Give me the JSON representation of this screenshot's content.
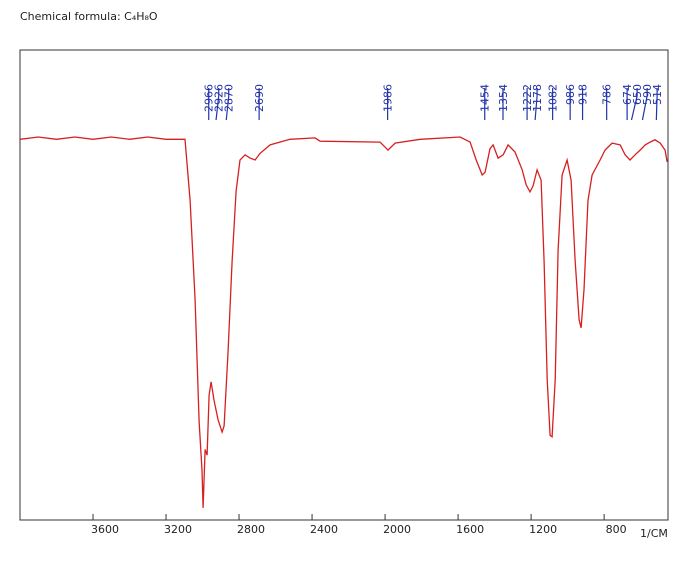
{
  "chart_data": {
    "type": "line",
    "title": "Chemical formula: C₄H₈O",
    "x_label": "1/CM",
    "xlim": [
      4000,
      450
    ],
    "ylim": [
      0,
      100
    ],
    "xticks": [
      3600,
      3200,
      2800,
      2400,
      2000,
      1600,
      1200,
      800
    ],
    "peaks": [
      2966,
      2926,
      2870,
      2690,
      1986,
      1454,
      1354,
      1222,
      1178,
      1082,
      986,
      918,
      786,
      674,
      650,
      590,
      514
    ],
    "peak_color": "#2233aa",
    "series": [
      {
        "name": "C4H8O",
        "color": "#d62020",
        "x": [
          4000,
          3900,
          3800,
          3700,
          3600,
          3500,
          3400,
          3300,
          3200,
          3096,
          3068,
          3041,
          3019,
          3003,
          2997,
          2986,
          2975,
          2964,
          2953,
          2937,
          2915,
          2893,
          2882,
          2860,
          2838,
          2816,
          2795,
          2767,
          2740,
          2712,
          2685,
          2630,
          2521,
          2384,
          2356,
          2027,
          1984,
          1945,
          1808,
          1589,
          1534,
          1501,
          1468,
          1452,
          1425,
          1408,
          1381,
          1353,
          1326,
          1288,
          1249,
          1227,
          1206,
          1189,
          1167,
          1145,
          1129,
          1112,
          1096,
          1085,
          1068,
          1052,
          1030,
          1003,
          981,
          959,
          937,
          926,
          910,
          888,
          866,
          822,
          795,
          756,
          712,
          685,
          658,
          630,
          603,
          575,
          548,
          521,
          493,
          466,
          455
        ],
        "values": [
          81,
          81.5,
          81,
          81.5,
          81,
          81.5,
          81,
          81.5,
          81,
          81,
          68,
          46.8,
          21,
          10.6,
          2.6,
          15,
          13.8,
          26.6,
          29.4,
          25.5,
          21.3,
          18.7,
          20,
          36,
          55,
          70,
          76.6,
          77.7,
          77,
          76.6,
          78,
          79.8,
          81,
          81.3,
          80.6,
          80.4,
          78.7,
          80.2,
          81,
          81.5,
          80.4,
          76.6,
          73.4,
          74,
          79,
          79.8,
          77,
          77.7,
          79.8,
          78.3,
          74.5,
          71.3,
          69.8,
          71.1,
          74.5,
          72.3,
          55,
          29.8,
          18,
          17.7,
          29.8,
          57.4,
          73.4,
          76.6,
          72.3,
          55.3,
          42.6,
          40.9,
          49,
          68,
          73.4,
          76.6,
          78.7,
          80.2,
          79.8,
          77.7,
          76.6,
          77.7,
          78.7,
          79.8,
          80.4,
          80.9,
          80.2,
          78.7,
          76.2
        ]
      }
    ]
  }
}
